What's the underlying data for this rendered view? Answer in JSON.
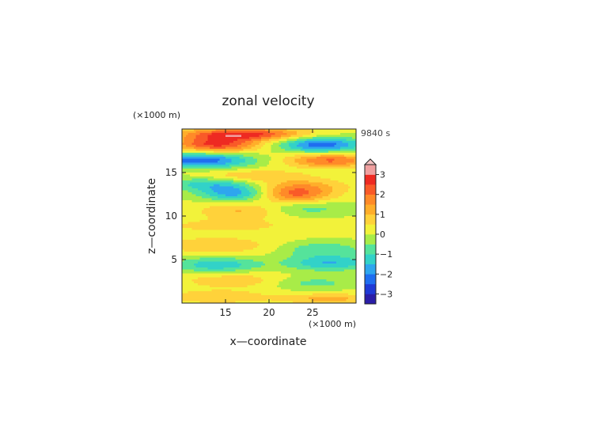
{
  "chart_data": {
    "type": "heatmap",
    "title": "zonal velocity",
    "xlabel": "x—coordinate",
    "ylabel": "z—coordinate",
    "x_unit": "(×1000 m)",
    "y_unit": "(×1000 m)",
    "time_label": "9840 s",
    "xlim": [
      10,
      30
    ],
    "ylim": [
      0,
      20
    ],
    "x_ticks": [
      "15",
      "20",
      "25"
    ],
    "y_ticks": [
      "5",
      "10",
      "15"
    ],
    "colorbar_ticks": [
      "3",
      "2",
      "1",
      "0",
      "−1",
      "−2",
      "−3"
    ],
    "levels": [
      -3.5,
      3.5
    ],
    "colors": [
      "#2b1ea8",
      "#1f3ad6",
      "#1f6ef0",
      "#2ea6ee",
      "#32d2c8",
      "#55e39b",
      "#a8ec48",
      "#f2f23a",
      "#ffd23a",
      "#ffae2a",
      "#ff8a28",
      "#f95a28",
      "#ee2a22",
      "#f0a0a0"
    ],
    "bands": [
      {
        "z": 19.4,
        "value": 2.6,
        "x_center": 17,
        "half_width": 7,
        "rows": 0.7
      },
      {
        "z": 18.2,
        "value": 2.5,
        "x_center": 14,
        "half_width": 5,
        "rows": 0.9
      },
      {
        "z": 18.2,
        "value": -2.4,
        "x_center": 26,
        "half_width": 5,
        "rows": 0.9
      },
      {
        "z": 16.4,
        "value": -2.5,
        "x_center": 12,
        "half_width": 6,
        "rows": 0.9
      },
      {
        "z": 16.4,
        "value": 2.0,
        "x_center": 27,
        "half_width": 5,
        "rows": 0.8
      },
      {
        "z": 14.6,
        "value": 0.9,
        "x_center": 18,
        "half_width": 6,
        "rows": 0.7
      },
      {
        "z": 13.7,
        "value": -1.3,
        "x_center": 13,
        "half_width": 5,
        "rows": 0.8
      },
      {
        "z": 13.4,
        "value": 1.0,
        "x_center": 24,
        "half_width": 5,
        "rows": 0.9
      },
      {
        "z": 12.6,
        "value": -1.8,
        "x_center": 16,
        "half_width": 4,
        "rows": 0.9
      },
      {
        "z": 12.4,
        "value": 1.8,
        "x_center": 23,
        "half_width": 4,
        "rows": 1.0
      },
      {
        "z": 10.6,
        "value": 1.0,
        "x_center": 17,
        "half_width": 5,
        "rows": 0.9
      },
      {
        "z": 10.9,
        "value": -0.9,
        "x_center": 24,
        "half_width": 5,
        "rows": 0.9
      },
      {
        "z": 8.9,
        "value": 0.6,
        "x_center": 15,
        "half_width": 8,
        "rows": 0.8
      },
      {
        "z": 6.6,
        "value": 0.8,
        "x_center": 14,
        "half_width": 7,
        "rows": 1.0
      },
      {
        "z": 6.2,
        "value": -1.0,
        "x_center": 26,
        "half_width": 5,
        "rows": 0.9
      },
      {
        "z": 4.4,
        "value": -1.5,
        "x_center": 14,
        "half_width": 5,
        "rows": 0.9
      },
      {
        "z": 4.6,
        "value": -1.6,
        "x_center": 27,
        "half_width": 5,
        "rows": 0.9
      },
      {
        "z": 2.6,
        "value": 0.8,
        "x_center": 16,
        "half_width": 6,
        "rows": 0.9
      },
      {
        "z": 2.3,
        "value": -0.8,
        "x_center": 25,
        "half_width": 5,
        "rows": 0.8
      },
      {
        "z": 0.7,
        "value": 0.9,
        "x_center": 14,
        "half_width": 6,
        "rows": 0.7
      },
      {
        "z": 0.5,
        "value": 1.1,
        "x_center": 27,
        "half_width": 5,
        "rows": 0.6
      }
    ],
    "background_value": 0.1
  }
}
